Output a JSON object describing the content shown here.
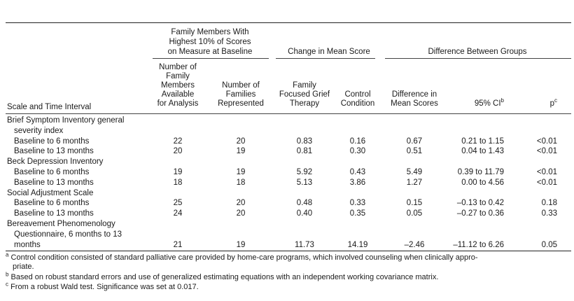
{
  "column_groups": {
    "family_members_with_highest": [
      "Family Members With",
      "Highest 10% of Scores",
      "on Measure at Baseline"
    ],
    "change_in_mean_score": "Change in Mean Score",
    "difference_between_groups": "Difference Between Groups"
  },
  "columns": {
    "scale": "Scale and Time Interval",
    "members_available": [
      "Number of",
      "Family",
      "Members",
      "Available",
      "for Analysis"
    ],
    "families_represented": [
      "Number of",
      "Families",
      "Represented"
    ],
    "ffgt": [
      "Family",
      "Focused Grief",
      "Therapy"
    ],
    "control": [
      "Control",
      "Condition"
    ],
    "difference": [
      "Difference in",
      "Mean Scores"
    ],
    "ci_label": "95% CI",
    "ci_sup": "b",
    "p_label": "p",
    "p_sup": "c"
  },
  "sections": [
    {
      "title": [
        "Brief Symptom Inventory general",
        "severity index"
      ],
      "rows": [
        {
          "label": "Baseline to 6 months",
          "members": "22",
          "families": "20",
          "ffgt": "0.83",
          "control": "0.16",
          "diff": "0.67",
          "ci": "0.21 to 1.15",
          "p": "<0.01"
        },
        {
          "label": "Baseline to 13 months",
          "members": "20",
          "families": "19",
          "ffgt": "0.81",
          "control": "0.30",
          "diff": "0.51",
          "ci": "0.04 to 1.43",
          "p": "<0.01"
        }
      ]
    },
    {
      "title": [
        "Beck Depression Inventory"
      ],
      "rows": [
        {
          "label": "Baseline to 6 months",
          "members": "19",
          "families": "19",
          "ffgt": "5.92",
          "control": "0.43",
          "diff": "5.49",
          "ci": "0.39 to 11.79",
          "p": "<0.01"
        },
        {
          "label": "Baseline to 13 months",
          "members": "18",
          "families": "18",
          "ffgt": "5.13",
          "control": "3.86",
          "diff": "1.27",
          "ci": "0.00 to 4.56",
          "p": "<0.01"
        }
      ]
    },
    {
      "title": [
        "Social Adjustment Scale"
      ],
      "rows": [
        {
          "label": "Baseline to 6 months",
          "members": "25",
          "families": "20",
          "ffgt": "0.48",
          "control": "0.33",
          "diff": "0.15",
          "ci": "–0.13 to 0.42",
          "p": "0.18"
        },
        {
          "label": "Baseline to 13 months",
          "members": "24",
          "families": "20",
          "ffgt": "0.40",
          "control": "0.35",
          "diff": "0.05",
          "ci": "–0.27 to 0.36",
          "p": "0.33"
        }
      ]
    },
    {
      "title": [
        "Bereavement Phenomenology",
        "Questionnaire, 6 months to 13"
      ],
      "rows": [
        {
          "label": "months",
          "members": "21",
          "families": "19",
          "ffgt": "11.73",
          "control": "14.19",
          "diff": "–2.46",
          "ci": "–11.12 to 6.26",
          "p": "0.05"
        }
      ]
    }
  ],
  "footnotes": [
    {
      "mark": "a",
      "lines": [
        "Control condition consisted of standard palliative care provided by home-care programs, which involved counseling when clinically appro-",
        "priate."
      ]
    },
    {
      "mark": "b",
      "lines": [
        "Based on robust standard errors and use of generalized estimating equations with an independent working covariance matrix."
      ]
    },
    {
      "mark": "c",
      "lines": [
        "From a robust Wald test. Significance was set at 0.017."
      ]
    }
  ]
}
